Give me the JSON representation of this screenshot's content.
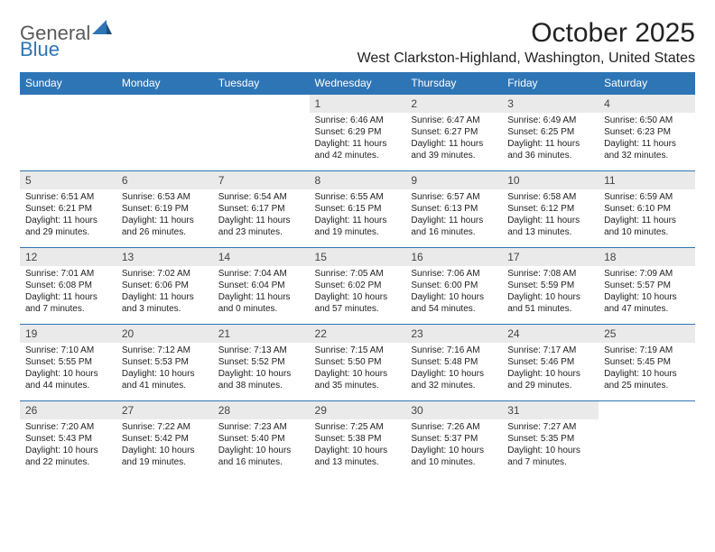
{
  "logo": {
    "text1": "General",
    "text2": "Blue"
  },
  "title": "October 2025",
  "location": "West Clarkston-Highland, Washington, United States",
  "colors": {
    "header_bg": "#2e75b6",
    "header_text": "#ffffff",
    "daynum_bg": "#eaeaea",
    "rule": "#2e75b6",
    "text": "#222222",
    "logo_gray": "#5a5a5a",
    "logo_blue": "#2e75b6",
    "page_bg": "#ffffff"
  },
  "dow": [
    "Sunday",
    "Monday",
    "Tuesday",
    "Wednesday",
    "Thursday",
    "Friday",
    "Saturday"
  ],
  "weeks": [
    [
      null,
      null,
      null,
      {
        "n": "1",
        "sr": "6:46 AM",
        "ss": "6:29 PM",
        "dl": "11 hours and 42 minutes."
      },
      {
        "n": "2",
        "sr": "6:47 AM",
        "ss": "6:27 PM",
        "dl": "11 hours and 39 minutes."
      },
      {
        "n": "3",
        "sr": "6:49 AM",
        "ss": "6:25 PM",
        "dl": "11 hours and 36 minutes."
      },
      {
        "n": "4",
        "sr": "6:50 AM",
        "ss": "6:23 PM",
        "dl": "11 hours and 32 minutes."
      }
    ],
    [
      {
        "n": "5",
        "sr": "6:51 AM",
        "ss": "6:21 PM",
        "dl": "11 hours and 29 minutes."
      },
      {
        "n": "6",
        "sr": "6:53 AM",
        "ss": "6:19 PM",
        "dl": "11 hours and 26 minutes."
      },
      {
        "n": "7",
        "sr": "6:54 AM",
        "ss": "6:17 PM",
        "dl": "11 hours and 23 minutes."
      },
      {
        "n": "8",
        "sr": "6:55 AM",
        "ss": "6:15 PM",
        "dl": "11 hours and 19 minutes."
      },
      {
        "n": "9",
        "sr": "6:57 AM",
        "ss": "6:13 PM",
        "dl": "11 hours and 16 minutes."
      },
      {
        "n": "10",
        "sr": "6:58 AM",
        "ss": "6:12 PM",
        "dl": "11 hours and 13 minutes."
      },
      {
        "n": "11",
        "sr": "6:59 AM",
        "ss": "6:10 PM",
        "dl": "11 hours and 10 minutes."
      }
    ],
    [
      {
        "n": "12",
        "sr": "7:01 AM",
        "ss": "6:08 PM",
        "dl": "11 hours and 7 minutes."
      },
      {
        "n": "13",
        "sr": "7:02 AM",
        "ss": "6:06 PM",
        "dl": "11 hours and 3 minutes."
      },
      {
        "n": "14",
        "sr": "7:04 AM",
        "ss": "6:04 PM",
        "dl": "11 hours and 0 minutes."
      },
      {
        "n": "15",
        "sr": "7:05 AM",
        "ss": "6:02 PM",
        "dl": "10 hours and 57 minutes."
      },
      {
        "n": "16",
        "sr": "7:06 AM",
        "ss": "6:00 PM",
        "dl": "10 hours and 54 minutes."
      },
      {
        "n": "17",
        "sr": "7:08 AM",
        "ss": "5:59 PM",
        "dl": "10 hours and 51 minutes."
      },
      {
        "n": "18",
        "sr": "7:09 AM",
        "ss": "5:57 PM",
        "dl": "10 hours and 47 minutes."
      }
    ],
    [
      {
        "n": "19",
        "sr": "7:10 AM",
        "ss": "5:55 PM",
        "dl": "10 hours and 44 minutes."
      },
      {
        "n": "20",
        "sr": "7:12 AM",
        "ss": "5:53 PM",
        "dl": "10 hours and 41 minutes."
      },
      {
        "n": "21",
        "sr": "7:13 AM",
        "ss": "5:52 PM",
        "dl": "10 hours and 38 minutes."
      },
      {
        "n": "22",
        "sr": "7:15 AM",
        "ss": "5:50 PM",
        "dl": "10 hours and 35 minutes."
      },
      {
        "n": "23",
        "sr": "7:16 AM",
        "ss": "5:48 PM",
        "dl": "10 hours and 32 minutes."
      },
      {
        "n": "24",
        "sr": "7:17 AM",
        "ss": "5:46 PM",
        "dl": "10 hours and 29 minutes."
      },
      {
        "n": "25",
        "sr": "7:19 AM",
        "ss": "5:45 PM",
        "dl": "10 hours and 25 minutes."
      }
    ],
    [
      {
        "n": "26",
        "sr": "7:20 AM",
        "ss": "5:43 PM",
        "dl": "10 hours and 22 minutes."
      },
      {
        "n": "27",
        "sr": "7:22 AM",
        "ss": "5:42 PM",
        "dl": "10 hours and 19 minutes."
      },
      {
        "n": "28",
        "sr": "7:23 AM",
        "ss": "5:40 PM",
        "dl": "10 hours and 16 minutes."
      },
      {
        "n": "29",
        "sr": "7:25 AM",
        "ss": "5:38 PM",
        "dl": "10 hours and 13 minutes."
      },
      {
        "n": "30",
        "sr": "7:26 AM",
        "ss": "5:37 PM",
        "dl": "10 hours and 10 minutes."
      },
      {
        "n": "31",
        "sr": "7:27 AM",
        "ss": "5:35 PM",
        "dl": "10 hours and 7 minutes."
      },
      null
    ]
  ],
  "labels": {
    "sunrise": "Sunrise:",
    "sunset": "Sunset:",
    "daylight": "Daylight:"
  }
}
